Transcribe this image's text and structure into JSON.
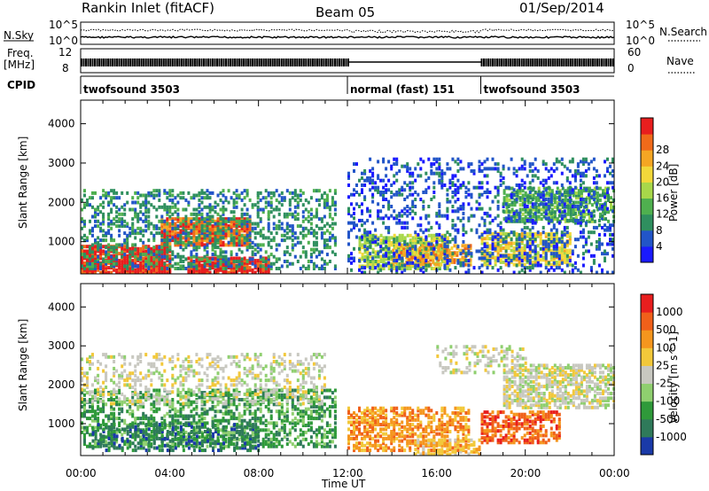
{
  "header": {
    "title": "Rankin Inlet (fitACF)",
    "beam": "Beam 05",
    "date": "01/Sep/2014"
  },
  "top_panels": {
    "nsky_label": "N.Sky",
    "nsky_scale_top": "10^5",
    "nsky_scale_bottom": "10^0",
    "nsearch_label": "N.Search",
    "freq_label_line1": "Freq.",
    "freq_label_line2": "[MHz]",
    "freq_ticks": [
      "12",
      "8"
    ],
    "nave_label": "Nave",
    "nave_ticks": [
      "60",
      "0"
    ],
    "cpid_label": "CPID",
    "cpid_segments": [
      {
        "label": "twofsound 3503",
        "start_hour": 0,
        "end_hour": 12
      },
      {
        "label": "normal (fast) 151",
        "start_hour": 12,
        "end_hour": 18
      },
      {
        "label": "twofsound 3503",
        "start_hour": 18,
        "end_hour": 24
      }
    ]
  },
  "chart_data": [
    {
      "type": "heatmap",
      "name": "power-panel",
      "ylabel": "Slant Range [km]",
      "yticks": [
        1000,
        2000,
        3000,
        4000
      ],
      "ylim": [
        180,
        4600
      ],
      "xlim": [
        0,
        24
      ],
      "colorbar": {
        "label": "Power [dB]",
        "ticks": [
          "4",
          "8",
          "12",
          "16",
          "20",
          "24",
          "28"
        ],
        "colors": [
          "#1a1aff",
          "#2255c8",
          "#2f8f5f",
          "#4fb04f",
          "#a8d84a",
          "#f2d83a",
          "#f5a623",
          "#f06a1a",
          "#e81e1e"
        ]
      },
      "regions": [
        {
          "t0": 0.0,
          "t1": 4.0,
          "r0": 200,
          "r1": 900,
          "level": 8
        },
        {
          "t0": 3.6,
          "t1": 7.6,
          "r0": 900,
          "r1": 1600,
          "level": 7
        },
        {
          "t0": 4.8,
          "t1": 8.5,
          "r0": 200,
          "r1": 600,
          "level": 8
        },
        {
          "t0": 0.0,
          "t1": 11.5,
          "r0": 300,
          "r1": 2300,
          "level": 2,
          "density": 0.35
        },
        {
          "t0": 12.5,
          "t1": 16.5,
          "r0": 300,
          "r1": 1200,
          "level": 4,
          "density": 0.7
        },
        {
          "t0": 14.0,
          "t1": 17.5,
          "r0": 400,
          "r1": 900,
          "level": 6,
          "density": 0.6
        },
        {
          "t0": 18.0,
          "t1": 22.0,
          "r0": 400,
          "r1": 1200,
          "level": 5,
          "density": 0.7
        },
        {
          "t0": 19.0,
          "t1": 24.0,
          "r0": 1500,
          "r1": 2400,
          "level": 3,
          "density": 0.6
        },
        {
          "t0": 12.0,
          "t1": 24.0,
          "r0": 200,
          "r1": 3100,
          "level": 1,
          "density": 0.25
        }
      ]
    },
    {
      "type": "heatmap",
      "name": "velocity-panel",
      "ylabel": "Slant Range [km]",
      "xlabel": "Time UT",
      "yticks": [
        1000,
        2000,
        3000,
        4000
      ],
      "ylim": [
        180,
        4600
      ],
      "xlim": [
        0,
        24
      ],
      "xticks": [
        "00:00",
        "04:00",
        "08:00",
        "12:00",
        "16:00",
        "20:00",
        "00:00"
      ],
      "colorbar": {
        "label": "Velocity [m s^-1]",
        "ticks": [
          "1000",
          "500",
          "100",
          "25",
          "-25",
          "-100",
          "-500",
          "-1000"
        ],
        "colors": [
          "#1a3aa8",
          "#2f7a5a",
          "#2f9a3a",
          "#8fcf6f",
          "#c8c8c0",
          "#f2c83a",
          "#f5961e",
          "#f0601a",
          "#e81e1e"
        ]
      },
      "regions": [
        {
          "t0": 0.0,
          "t1": 11.5,
          "r0": 400,
          "r1": 1900,
          "level": 2,
          "density": 0.45
        },
        {
          "t0": 0.0,
          "t1": 11.0,
          "r0": 1500,
          "r1": 2800,
          "level": 4,
          "density": 0.3
        },
        {
          "t0": 0.5,
          "t1": 8.0,
          "r0": 300,
          "r1": 1000,
          "level": 1,
          "density": 0.4
        },
        {
          "t0": 12.0,
          "t1": 17.5,
          "r0": 300,
          "r1": 1400,
          "level": 6,
          "density": 0.55
        },
        {
          "t0": 15.0,
          "t1": 18.0,
          "r0": 200,
          "r1": 600,
          "level": 5,
          "density": 0.5
        },
        {
          "t0": 18.0,
          "t1": 21.5,
          "r0": 500,
          "r1": 1300,
          "level": 7,
          "density": 0.6
        },
        {
          "t0": 19.0,
          "t1": 24.0,
          "r0": 1400,
          "r1": 2500,
          "level": 4,
          "density": 0.6
        },
        {
          "t0": 16.0,
          "t1": 20.0,
          "r0": 2300,
          "r1": 3000,
          "level": 4,
          "density": 0.3
        }
      ]
    }
  ]
}
